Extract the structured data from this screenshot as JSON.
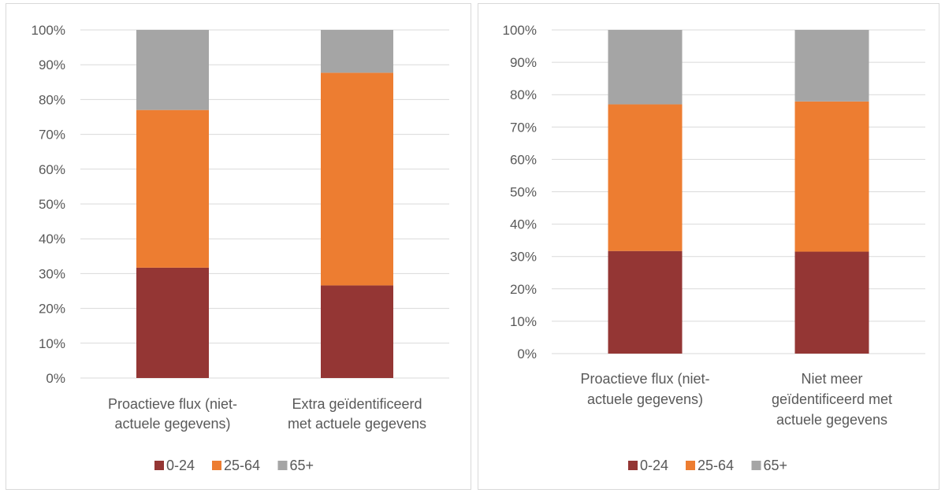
{
  "colors": {
    "0-24": "#943634",
    "25-64": "#ED7D31",
    "65+": "#A5A5A5",
    "grid": "#d9d9d9",
    "text": "#595959"
  },
  "chart_data": [
    {
      "type": "bar",
      "stacked": true,
      "normalized": true,
      "categories": [
        "Proactieve flux (niet-actuele gegevens)",
        "Extra geïdentificeerd met actuele gegevens"
      ],
      "category_lines": [
        [
          "Proactieve flux (niet-",
          "actuele gegevens)"
        ],
        [
          "Extra geïdentificeerd",
          "met actuele gegevens"
        ]
      ],
      "series": [
        {
          "name": "0-24",
          "values": [
            31.7,
            26.6
          ]
        },
        {
          "name": "25-64",
          "values": [
            45.3,
            61.1
          ]
        },
        {
          "name": "65+",
          "values": [
            23.0,
            12.3
          ]
        }
      ],
      "yticks": [
        "0%",
        "10%",
        "20%",
        "30%",
        "40%",
        "50%",
        "60%",
        "70%",
        "80%",
        "90%",
        "100%"
      ],
      "ylim": [
        0,
        100
      ],
      "grid": true,
      "legend": "bottom"
    },
    {
      "type": "bar",
      "stacked": true,
      "normalized": true,
      "categories": [
        "Proactieve flux (niet-actuele gegevens)",
        "Niet meer geïdentificeerd met actuele gegevens"
      ],
      "category_lines": [
        [
          "Proactieve flux (niet-",
          "actuele gegevens)"
        ],
        [
          "Niet meer",
          "geïdentificeerd met",
          "actuele gegevens"
        ]
      ],
      "series": [
        {
          "name": "0-24",
          "values": [
            31.7,
            31.5
          ]
        },
        {
          "name": "25-64",
          "values": [
            45.3,
            46.4
          ]
        },
        {
          "name": "65+",
          "values": [
            23.0,
            22.1
          ]
        }
      ],
      "yticks": [
        "0%",
        "10%",
        "20%",
        "30%",
        "40%",
        "50%",
        "60%",
        "70%",
        "80%",
        "90%",
        "100%"
      ],
      "ylim": [
        0,
        100
      ],
      "grid": true,
      "legend": "bottom"
    }
  ]
}
